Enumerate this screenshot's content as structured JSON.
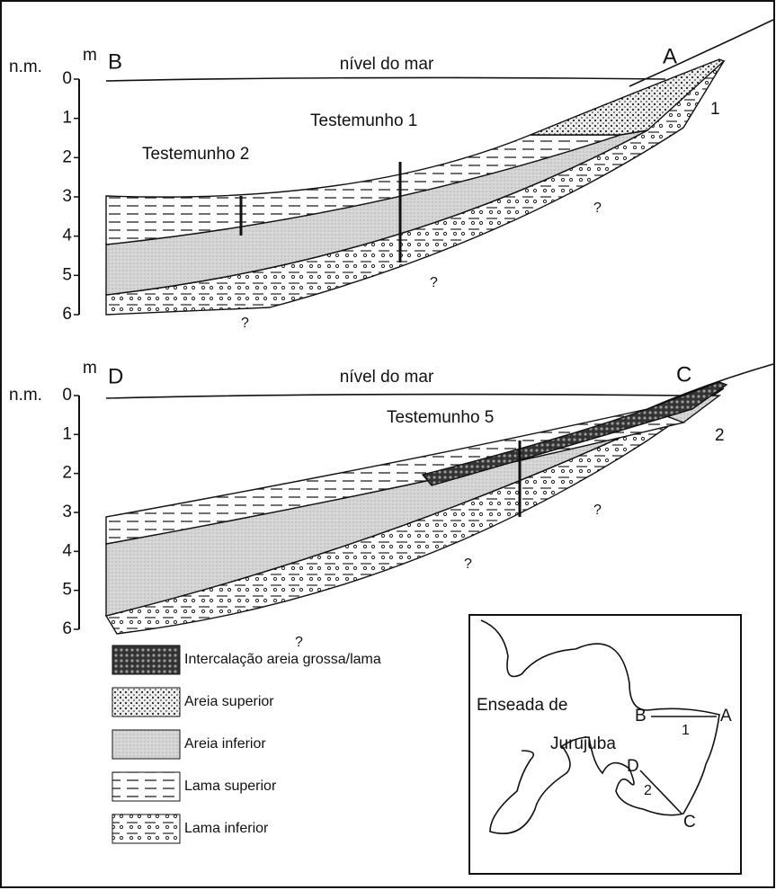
{
  "sections": [
    {
      "datum": "n.m.",
      "unit": "m",
      "left_point": "B",
      "right_point": "A",
      "sea_level": "nível do mar",
      "profile": "1",
      "depths": [
        0,
        1,
        2,
        3,
        4,
        5,
        6
      ],
      "cores": [
        "Testemunho 1",
        "Testemunho 2"
      ],
      "unknown": [
        "?",
        "?",
        "?"
      ]
    },
    {
      "datum": "n.m.",
      "unit": "m",
      "left_point": "D",
      "right_point": "C",
      "sea_level": "nível do mar",
      "profile": "2",
      "depths": [
        0,
        1,
        2,
        3,
        4,
        5,
        6
      ],
      "cores": [
        "Testemunho 5"
      ],
      "unknown": [
        "?",
        "?",
        "?"
      ]
    }
  ],
  "legend": [
    "Intercalação areia grossa/lama",
    "Areia superior",
    "Areia inferior",
    "Lama superior",
    "Lama inferior"
  ],
  "map": {
    "bay": [
      "Enseada de",
      "Jurujuba"
    ],
    "points": [
      "A",
      "B",
      "C",
      "D"
    ],
    "profiles": [
      "1",
      "2"
    ]
  }
}
